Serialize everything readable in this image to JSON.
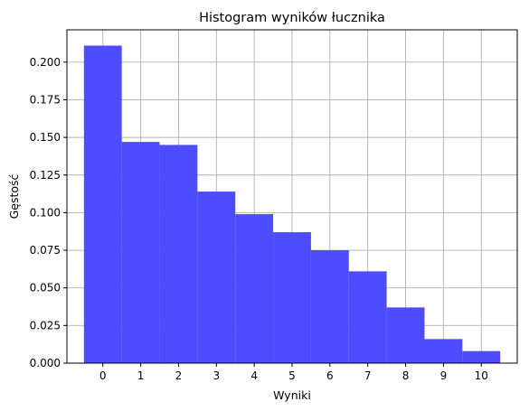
{
  "chart_data": {
    "type": "bar",
    "title": "Histogram wyników łucznika",
    "xlabel": "Wyniki",
    "ylabel": "Gęstość",
    "categories": [
      "0",
      "1",
      "2",
      "3",
      "4",
      "5",
      "6",
      "7",
      "8",
      "9",
      "10"
    ],
    "values": [
      0.211,
      0.147,
      0.145,
      0.114,
      0.099,
      0.087,
      0.075,
      0.061,
      0.037,
      0.016,
      0.008
    ],
    "bar_color": "#4d4dff",
    "xlim": [
      -0.95,
      10.95
    ],
    "ylim": [
      0,
      0.2215
    ],
    "x_ticks": [
      "0",
      "1",
      "2",
      "3",
      "4",
      "5",
      "6",
      "7",
      "8",
      "9",
      "10"
    ],
    "y_ticks": [
      "0.000",
      "0.025",
      "0.050",
      "0.075",
      "0.100",
      "0.125",
      "0.150",
      "0.175",
      "0.200"
    ],
    "grid": true
  }
}
